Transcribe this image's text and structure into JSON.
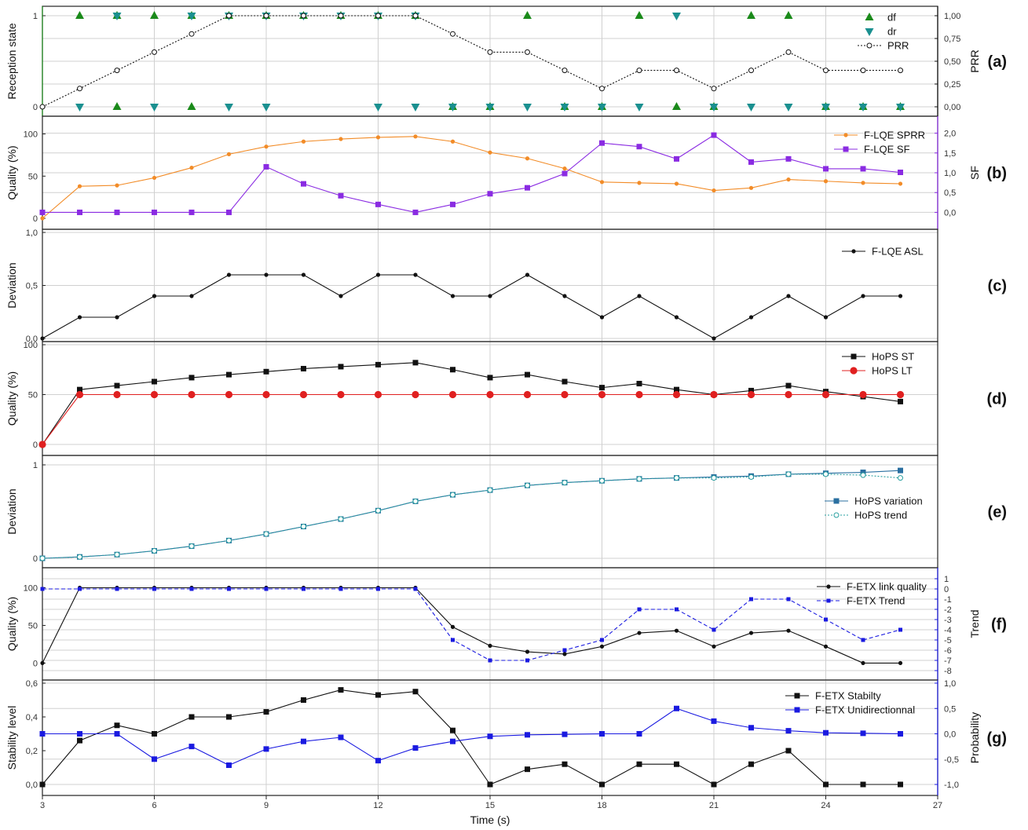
{
  "chart_data": {
    "type": "line",
    "xlabel": "Time (s)",
    "x_ticks": [
      "3",
      "6",
      "9",
      "12",
      "15",
      "18",
      "21",
      "24",
      "27"
    ],
    "x_range": [
      3,
      27
    ],
    "panels": [
      {
        "tag": "(a)",
        "ylabel": "Reception state",
        "y_ticks": [
          "0",
          "1"
        ],
        "ylim": [
          0,
          1
        ],
        "y2label": "PRR",
        "y2_ticks": [
          "0,00",
          "0,25",
          "0,50",
          "0,75",
          "1,00"
        ],
        "y2lim": [
          0,
          1
        ],
        "series": [
          {
            "name": "df",
            "axis": "left",
            "color": "#1a8a1a",
            "style": "points",
            "marker": "triangle-up",
            "x": [
              4,
              5,
              6,
              7,
              8,
              9,
              10,
              11,
              12,
              13,
              16,
              19,
              22,
              23
            ],
            "y": [
              1,
              1,
              1,
              1,
              1,
              1,
              1,
              1,
              1,
              1,
              1,
              1,
              1,
              1
            ]
          },
          {
            "name": "df_zero",
            "legend": false,
            "axis": "left",
            "color": "#1a8a1a",
            "style": "points",
            "marker": "triangle-up",
            "x": [
              5,
              7,
              14,
              15,
              17,
              18,
              20,
              21,
              24,
              25,
              26
            ],
            "y": [
              0,
              0,
              0,
              0,
              0,
              0,
              0,
              0,
              0,
              0,
              0
            ]
          },
          {
            "name": "dr",
            "axis": "left",
            "color": "#1a9090",
            "style": "points",
            "marker": "triangle-down",
            "x": [
              4,
              6,
              8,
              9,
              12,
              13,
              14,
              15,
              16,
              17,
              18,
              19,
              21,
              22,
              23,
              24,
              25,
              26
            ],
            "y": [
              0,
              0,
              0,
              0,
              0,
              0,
              0,
              0,
              0,
              0,
              0,
              0,
              0,
              0,
              0,
              0,
              0,
              0
            ]
          },
          {
            "name": "dr_one",
            "legend": false,
            "axis": "left",
            "color": "#1a9090",
            "style": "points",
            "marker": "triangle-down",
            "x": [
              5,
              7,
              8,
              9,
              10,
              11,
              12,
              13,
              20
            ],
            "y": [
              1,
              1,
              1,
              1,
              1,
              1,
              1,
              1,
              1
            ]
          },
          {
            "name": "PRR",
            "axis": "right",
            "color": "#111111",
            "style": "dotted",
            "marker": "open-circle",
            "x": [
              3,
              4,
              5,
              6,
              7,
              8,
              9,
              10,
              11,
              12,
              13,
              14,
              15,
              16,
              17,
              18,
              19,
              20,
              21,
              22,
              23,
              24,
              25,
              26
            ],
            "y": [
              0,
              0.2,
              0.4,
              0.6,
              0.8,
              1,
              1,
              1,
              1,
              1,
              1,
              0.8,
              0.6,
              0.6,
              0.4,
              0.2,
              0.4,
              0.4,
              0.2,
              0.4,
              0.6,
              0.4,
              0.4,
              0.4
            ]
          }
        ]
      },
      {
        "tag": "(b)",
        "ylabel": "Quality (%)",
        "y_ticks": [
          "0",
          "50",
          "100"
        ],
        "ylim": [
          0,
          108
        ],
        "y2label": "SF",
        "y2_ticks": [
          "0,0",
          "0,5",
          "1,0",
          "1,5",
          "2,0"
        ],
        "y2lim": [
          -0.15,
          2.15
        ],
        "series": [
          {
            "name": "F-LQE SPRR",
            "axis": "left",
            "color": "#f28c28",
            "style": "solid",
            "marker": "dot",
            "x": [
              3,
              4,
              5,
              6,
              7,
              8,
              9,
              10,
              11,
              12,
              13,
              14,
              15,
              16,
              17,
              18,
              19,
              20,
              21,
              22,
              23,
              24,
              25,
              26
            ],
            "y": [
              0,
              38,
              39,
              48,
              60,
              76,
              85,
              91,
              94,
              96,
              97,
              91,
              78,
              71,
              59,
              43,
              42,
              41,
              33,
              36,
              46,
              44,
              42,
              41
            ]
          },
          {
            "name": "F-LQE SF",
            "axis": "right",
            "color": "#8a2be2",
            "style": "solid",
            "marker": "square",
            "x": [
              3,
              4,
              5,
              6,
              7,
              8,
              9,
              10,
              11,
              12,
              13,
              14,
              15,
              16,
              17,
              18,
              19,
              20,
              21,
              22,
              23,
              24,
              25,
              26
            ],
            "y": [
              0,
              0,
              0,
              0,
              0,
              0,
              1.15,
              0.72,
              0.42,
              0.2,
              0,
              0.2,
              0.47,
              0.62,
              0.98,
              1.75,
              1.66,
              1.35,
              1.95,
              1.27,
              1.35,
              1.1,
              1.1,
              1.01
            ]
          }
        ]
      },
      {
        "tag": "(c)",
        "ylabel": "Deviation",
        "y_ticks": [
          "0,0",
          "0,5",
          "1,0"
        ],
        "ylim": [
          0,
          1
        ],
        "series": [
          {
            "name": "F-LQE ASL",
            "axis": "left",
            "color": "#111111",
            "style": "solid",
            "marker": "dot",
            "x": [
              3,
              4,
              5,
              6,
              7,
              8,
              9,
              10,
              11,
              12,
              13,
              14,
              15,
              16,
              17,
              18,
              19,
              20,
              21,
              22,
              23,
              24,
              25,
              26
            ],
            "y": [
              0,
              0.2,
              0.2,
              0.4,
              0.4,
              0.6,
              0.6,
              0.6,
              0.4,
              0.6,
              0.6,
              0.4,
              0.4,
              0.6,
              0.4,
              0.2,
              0.4,
              0.2,
              0,
              0.2,
              0.4,
              0.2,
              0.4,
              0.4
            ]
          }
        ]
      },
      {
        "tag": "(d)",
        "ylabel": "Quality (%)",
        "y_ticks": [
          "0",
          "50",
          "100"
        ],
        "ylim": [
          0,
          100
        ],
        "series": [
          {
            "name": "HoPS ST",
            "axis": "left",
            "color": "#111111",
            "style": "solid",
            "marker": "square",
            "x": [
              3,
              4,
              5,
              6,
              7,
              8,
              9,
              10,
              11,
              12,
              13,
              14,
              15,
              16,
              17,
              18,
              19,
              20,
              21,
              22,
              23,
              24,
              25,
              26
            ],
            "y": [
              0,
              55,
              59,
              63,
              67,
              70,
              73,
              76,
              78,
              80,
              82,
              75,
              67,
              70,
              63,
              57,
              61,
              55,
              50,
              54,
              59,
              53,
              48,
              43
            ]
          },
          {
            "name": "HoPS LT",
            "axis": "left",
            "color": "#e02020",
            "style": "solid",
            "marker": "big-dot",
            "x": [
              3,
              4,
              5,
              6,
              7,
              8,
              9,
              10,
              11,
              12,
              13,
              14,
              15,
              16,
              17,
              18,
              19,
              20,
              21,
              22,
              23,
              24,
              25,
              26
            ],
            "y": [
              0,
              50,
              50,
              50,
              50,
              50,
              50,
              50,
              50,
              50,
              50,
              50,
              50,
              50,
              50,
              50,
              50,
              50,
              50,
              50,
              50,
              50,
              50,
              50
            ]
          }
        ]
      },
      {
        "tag": "(e)",
        "ylabel": "Deviation",
        "y_ticks": [
          "0",
          "1"
        ],
        "ylim": [
          0,
          1
        ],
        "series": [
          {
            "name": "HoPS variation",
            "axis": "left",
            "color": "#2a6fa0",
            "style": "solid",
            "marker": "square",
            "x": [
              3,
              4,
              5,
              6,
              7,
              8,
              9,
              10,
              11,
              12,
              13,
              14,
              15,
              16,
              17,
              18,
              19,
              20,
              21,
              22,
              23,
              24,
              25,
              26
            ],
            "y": [
              0,
              0.015,
              0.04,
              0.08,
              0.13,
              0.19,
              0.26,
              0.34,
              0.42,
              0.51,
              0.61,
              0.68,
              0.73,
              0.78,
              0.81,
              0.83,
              0.85,
              0.86,
              0.87,
              0.88,
              0.9,
              0.91,
              0.92,
              0.94
            ]
          },
          {
            "name": "HoPS trend",
            "axis": "left",
            "color": "#2aa0a0",
            "style": "dotted",
            "marker": "open-circle",
            "x": [
              3,
              4,
              5,
              6,
              7,
              8,
              9,
              10,
              11,
              12,
              13,
              14,
              15,
              16,
              17,
              18,
              19,
              20,
              21,
              22,
              23,
              24,
              25,
              26
            ],
            "y": [
              0,
              0.015,
              0.04,
              0.08,
              0.13,
              0.19,
              0.26,
              0.34,
              0.42,
              0.51,
              0.61,
              0.68,
              0.73,
              0.78,
              0.81,
              0.83,
              0.85,
              0.86,
              0.86,
              0.87,
              0.9,
              0.9,
              0.89,
              0.86
            ]
          }
        ]
      },
      {
        "tag": "(f)",
        "ylabel": "Quality (%)",
        "y_ticks": [
          "0",
          "50",
          "100"
        ],
        "ylim": [
          -10,
          112
        ],
        "y2label": "Trend",
        "y2_ticks": [
          "1",
          "0",
          "-1",
          "-2",
          "-3",
          "-4",
          "-5",
          "-6",
          "-7",
          "-8"
        ],
        "y2lim": [
          -8,
          1
        ],
        "series": [
          {
            "name": "F-ETX link quality",
            "axis": "left",
            "color": "#111111",
            "style": "solid",
            "marker": "dot",
            "x": [
              3,
              4,
              5,
              6,
              7,
              8,
              9,
              10,
              11,
              12,
              13,
              14,
              15,
              16,
              17,
              18,
              19,
              20,
              21,
              22,
              23,
              24,
              25,
              26
            ],
            "y": [
              0,
              100,
              100,
              100,
              100,
              100,
              100,
              100,
              100,
              100,
              100,
              48,
              23,
              15,
              12,
              22,
              40,
              43,
              22,
              40,
              43,
              22,
              0,
              0
            ]
          },
          {
            "name": "F-ETX Trend",
            "axis": "right",
            "color": "#1a1ae0",
            "style": "dashed",
            "marker": "small-square",
            "x": [
              3,
              4,
              5,
              6,
              7,
              8,
              9,
              10,
              11,
              12,
              13,
              14,
              15,
              16,
              17,
              18,
              19,
              20,
              21,
              22,
              23,
              24,
              25,
              26
            ],
            "y": [
              0,
              0,
              0,
              0,
              0,
              0,
              0,
              0,
              0,
              0,
              0,
              -5,
              -7,
              -7,
              -6,
              -5,
              -2,
              -2,
              -4,
              -1,
              -1,
              -3,
              -5,
              -4
            ]
          }
        ]
      },
      {
        "tag": "(g)",
        "ylabel": "Stability level",
        "y_ticks": [
          "0,0",
          "0,2",
          "0,4",
          "0,6"
        ],
        "ylim": [
          0,
          0.6
        ],
        "y2label": "Probability",
        "y2_ticks": [
          "1,0",
          "0,5",
          "0,0",
          "-0,5",
          "-1,0"
        ],
        "y2lim": [
          -1,
          1
        ],
        "series": [
          {
            "name": "F-ETX Stabilty",
            "axis": "left",
            "color": "#111111",
            "style": "solid",
            "marker": "square",
            "x": [
              3,
              4,
              5,
              6,
              7,
              8,
              9,
              10,
              11,
              12,
              13,
              14,
              15,
              16,
              17,
              18,
              19,
              20,
              21,
              22,
              23,
              24,
              25,
              26
            ],
            "y": [
              0,
              0.26,
              0.35,
              0.3,
              0.4,
              0.4,
              0.43,
              0.5,
              0.56,
              0.53,
              0.55,
              0.32,
              0,
              0.09,
              0.12,
              0,
              0.12,
              0.12,
              0,
              0.12,
              0.2,
              0,
              0,
              0
            ]
          },
          {
            "name": "F-ETX Unidirectionnal",
            "axis": "right",
            "color": "#1a1ae0",
            "style": "solid",
            "marker": "square",
            "x": [
              3,
              4,
              5,
              6,
              7,
              8,
              9,
              10,
              11,
              12,
              13,
              14,
              15,
              16,
              17,
              18,
              19,
              20,
              21,
              22,
              23,
              24,
              25,
              26
            ],
            "y": [
              0,
              0,
              0,
              -0.5,
              -0.25,
              -0.62,
              -0.3,
              -0.15,
              -0.07,
              -0.53,
              -0.28,
              -0.15,
              -0.05,
              -0.02,
              -0.01,
              0,
              0,
              0.5,
              0.25,
              0.12,
              0.06,
              0.02,
              0.01,
              0
            ]
          }
        ]
      }
    ]
  }
}
